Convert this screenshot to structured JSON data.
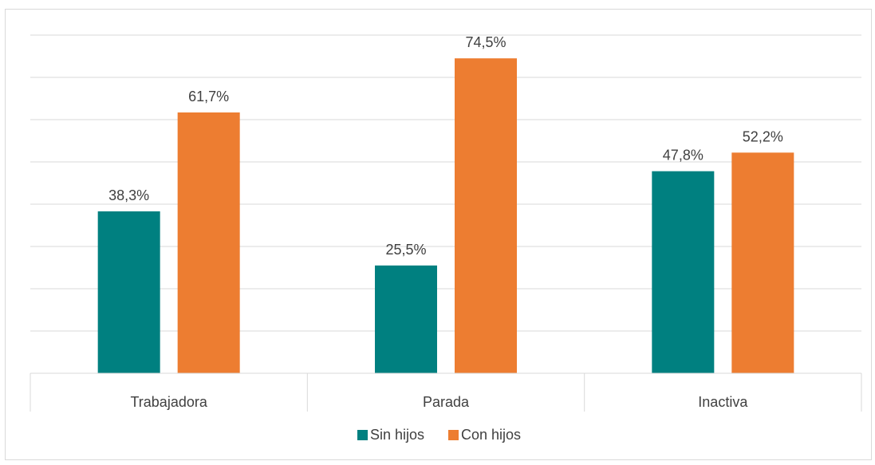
{
  "chart_data": {
    "type": "bar",
    "title": "",
    "xlabel": "",
    "ylabel": "",
    "categories": [
      "Trabajadora",
      "Parada",
      "Inactiva"
    ],
    "series": [
      {
        "name": "Sin hijos",
        "values": [
          38.3,
          25.5,
          47.8
        ],
        "labels": [
          "38,3%",
          "25,5%",
          "47,8%"
        ],
        "color": "#008080"
      },
      {
        "name": "Con hijos",
        "values": [
          61.7,
          74.5,
          52.2
        ],
        "labels": [
          "61,7%",
          "74,5%",
          "52,2%"
        ],
        "color": "#ed7d31"
      }
    ],
    "ylim": [
      0,
      80
    ],
    "y_gridlines": [
      10,
      20,
      30,
      40,
      50,
      60,
      70,
      80
    ],
    "grid": true,
    "y_tick_labels_shown": false,
    "legend": {
      "position": "bottom",
      "items": [
        "Sin hijos",
        "Con hijos"
      ]
    },
    "colors": {
      "gridline": "#d9d9d9",
      "axis": "#d9d9d9",
      "text": "#404040"
    }
  }
}
